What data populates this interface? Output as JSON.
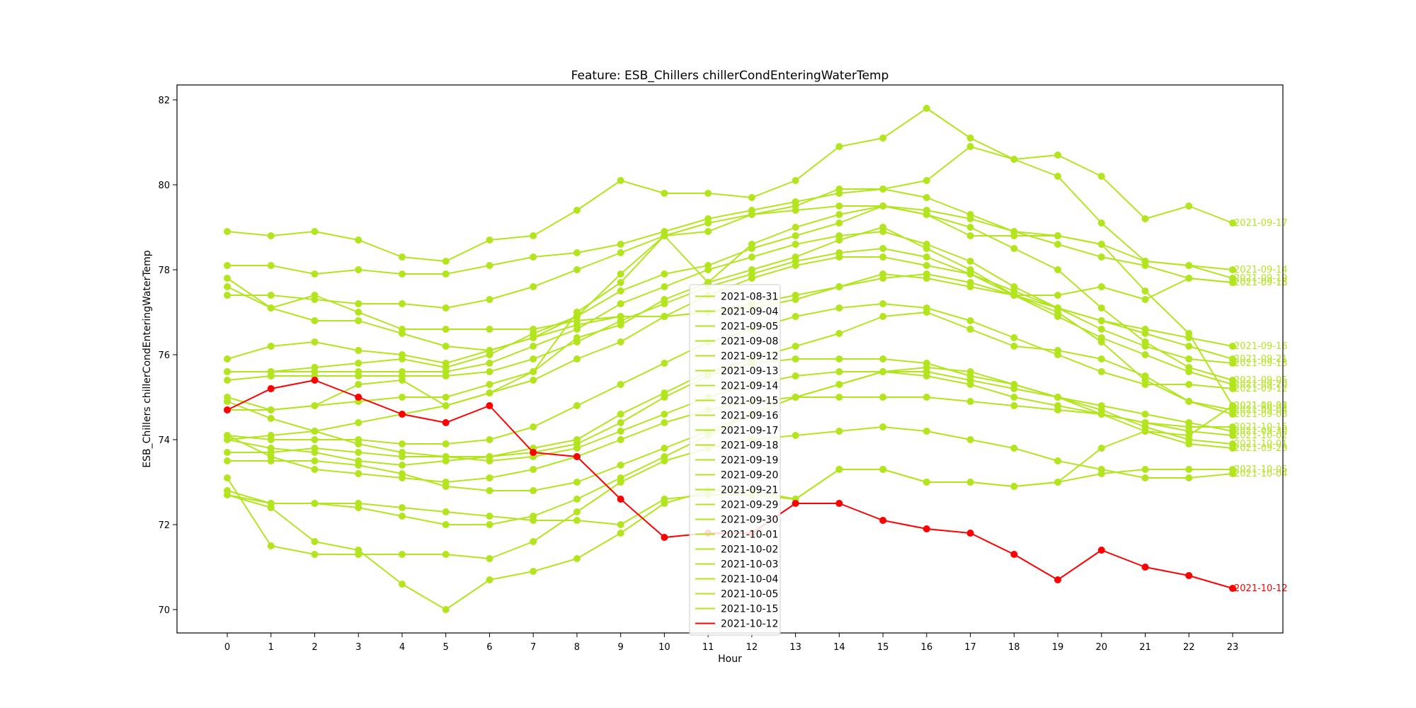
{
  "chart_data": {
    "type": "line",
    "title": "Feature: ESB_Chillers chillerCondEnteringWaterTemp",
    "xlabel": "Hour",
    "ylabel": "ESB_Chillers chillerCondEnteringWaterTemp",
    "x": [
      0,
      1,
      2,
      3,
      4,
      5,
      6,
      7,
      8,
      9,
      10,
      11,
      12,
      13,
      14,
      15,
      16,
      17,
      18,
      19,
      20,
      21,
      22,
      23
    ],
    "xticks": [
      "0",
      "1",
      "2",
      "3",
      "4",
      "5",
      "6",
      "7",
      "8",
      "9",
      "10",
      "11",
      "12",
      "13",
      "14",
      "15",
      "16",
      "17",
      "18",
      "19",
      "20",
      "21",
      "22",
      "23"
    ],
    "yticks": [
      "70",
      "72",
      "74",
      "76",
      "78",
      "80",
      "82"
    ],
    "xlim": [
      -1.15,
      24.15
    ],
    "ylim": [
      69.45,
      82.35
    ],
    "grid": false,
    "legend_placement": "lower center",
    "colors": {
      "normal": "#b3e51e",
      "highlight": "#ff0000"
    },
    "series": [
      {
        "name": "2021-08-31",
        "values": [
          75.0,
          74.7,
          74.8,
          75.3,
          75.4,
          74.8,
          75.1,
          75.6,
          77.0,
          77.7,
          78.8,
          77.7,
          78.6,
          79.0,
          79.3,
          79.5,
          79.3,
          78.8,
          78.8,
          78.8,
          78.6,
          77.5,
          76.5,
          74.8
        ]
      },
      {
        "name": "2021-09-04",
        "values": [
          74.7,
          74.7,
          74.8,
          74.9,
          75.0,
          75.0,
          75.3,
          75.6,
          76.4,
          76.7,
          77.3,
          77.7,
          78.0,
          78.3,
          78.7,
          79.0,
          78.5,
          78.0,
          77.4,
          77.0,
          76.3,
          75.4,
          74.9,
          74.7
        ]
      },
      {
        "name": "2021-09-05",
        "values": [
          75.6,
          75.6,
          75.7,
          75.8,
          75.9,
          75.7,
          76.0,
          76.5,
          76.9,
          77.5,
          77.9,
          78.1,
          78.5,
          78.8,
          79.1,
          79.5,
          79.3,
          79.0,
          78.5,
          78.0,
          77.1,
          76.3,
          75.7,
          75.4
        ]
      },
      {
        "name": "2021-09-08",
        "values": [
          73.7,
          73.7,
          73.8,
          73.7,
          73.6,
          73.6,
          73.6,
          73.8,
          74.0,
          74.6,
          75.1,
          75.6,
          75.9,
          76.2,
          76.5,
          76.9,
          77.0,
          76.6,
          76.2,
          76.1,
          75.9,
          75.5,
          74.9,
          74.6
        ]
      },
      {
        "name": "2021-09-12",
        "values": [
          74.1,
          74.0,
          74.0,
          74.0,
          73.9,
          73.9,
          74.0,
          74.3,
          74.8,
          75.3,
          75.8,
          76.3,
          76.6,
          76.9,
          77.1,
          77.2,
          77.1,
          76.8,
          76.4,
          76.0,
          75.6,
          75.3,
          75.3,
          75.2
        ]
      },
      {
        "name": "2021-09-13",
        "values": [
          75.6,
          75.6,
          75.6,
          75.6,
          75.6,
          75.6,
          75.8,
          76.2,
          76.6,
          77.2,
          77.6,
          78.0,
          78.3,
          78.6,
          78.8,
          78.9,
          78.6,
          78.2,
          77.6,
          77.1,
          76.6,
          76.2,
          75.9,
          75.8
        ]
      },
      {
        "name": "2021-09-14",
        "values": [
          78.1,
          78.1,
          77.9,
          78.0,
          77.9,
          77.9,
          78.1,
          78.3,
          78.4,
          78.6,
          78.9,
          79.2,
          79.4,
          79.6,
          79.8,
          79.9,
          79.7,
          79.3,
          78.9,
          78.8,
          78.6,
          78.2,
          78.1,
          78.0
        ]
      },
      {
        "name": "2021-09-15",
        "values": [
          77.4,
          77.4,
          77.3,
          77.2,
          77.2,
          77.1,
          77.3,
          77.6,
          78.0,
          78.4,
          78.8,
          79.1,
          79.3,
          79.4,
          79.5,
          79.5,
          79.4,
          79.2,
          78.9,
          78.6,
          78.3,
          78.1,
          77.8,
          77.7
        ]
      },
      {
        "name": "2021-09-16",
        "values": [
          75.4,
          75.5,
          75.5,
          75.5,
          75.5,
          75.5,
          75.6,
          75.9,
          76.3,
          76.8,
          77.2,
          77.6,
          77.9,
          78.2,
          78.4,
          78.5,
          78.3,
          77.9,
          77.5,
          77.1,
          76.8,
          76.6,
          76.4,
          76.2
        ]
      },
      {
        "name": "2021-09-17",
        "values": [
          78.9,
          78.8,
          78.9,
          78.7,
          78.3,
          78.2,
          78.7,
          78.8,
          79.4,
          80.1,
          79.8,
          79.8,
          79.7,
          80.1,
          80.9,
          81.1,
          81.8,
          81.1,
          80.6,
          80.7,
          80.2,
          79.2,
          79.5,
          79.1
        ]
      },
      {
        "name": "2021-09-18",
        "values": [
          77.8,
          77.1,
          77.4,
          77.0,
          76.6,
          76.6,
          76.6,
          76.6,
          76.8,
          76.9,
          76.9,
          77.0,
          77.2,
          77.4,
          77.6,
          77.9,
          77.8,
          77.6,
          77.4,
          77.4,
          77.6,
          77.3,
          77.8,
          77.7
        ]
      },
      {
        "name": "2021-09-19",
        "values": [
          77.6,
          77.1,
          76.8,
          76.8,
          76.5,
          76.2,
          76.1,
          76.4,
          76.9,
          77.9,
          78.8,
          78.9,
          79.3,
          79.5,
          79.9,
          79.9,
          80.1,
          80.9,
          80.6,
          80.2,
          79.1,
          78.2,
          78.1,
          77.8
        ]
      },
      {
        "name": "2021-09-20",
        "values": [
          74.9,
          74.5,
          74.2,
          74.4,
          74.6,
          74.8,
          75.1,
          75.4,
          75.9,
          76.3,
          76.9,
          77.4,
          77.8,
          78.1,
          78.3,
          78.3,
          78.1,
          77.9,
          77.4,
          76.9,
          76.4,
          76.0,
          75.6,
          75.3
        ]
      },
      {
        "name": "2021-09-21",
        "values": [
          75.9,
          76.2,
          76.3,
          76.1,
          76.0,
          75.8,
          76.1,
          76.4,
          76.7,
          76.9,
          76.9,
          77.0,
          77.1,
          77.3,
          77.6,
          77.8,
          77.9,
          77.7,
          77.4,
          77.1,
          76.8,
          76.5,
          76.2,
          75.9
        ]
      },
      {
        "name": "2021-09-29",
        "values": [
          74.0,
          73.8,
          73.7,
          73.5,
          73.4,
          73.5,
          73.6,
          73.7,
          73.9,
          74.4,
          75.0,
          75.5,
          75.8,
          75.9,
          75.9,
          75.9,
          75.8,
          75.5,
          75.3,
          75.0,
          74.6,
          74.2,
          73.9,
          73.8
        ]
      },
      {
        "name": "2021-09-30",
        "values": [
          73.5,
          73.5,
          73.5,
          73.4,
          73.2,
          72.9,
          72.8,
          72.8,
          73.0,
          73.4,
          73.8,
          74.2,
          74.6,
          75.0,
          75.3,
          75.6,
          75.6,
          75.4,
          75.2,
          75.0,
          74.8,
          74.6,
          74.4,
          74.2
        ]
      },
      {
        "name": "2021-10-01",
        "values": [
          72.7,
          72.5,
          72.5,
          72.4,
          72.2,
          72.0,
          72.0,
          72.2,
          72.6,
          73.1,
          73.6,
          74.1,
          74.6,
          75.0,
          75.3,
          75.6,
          75.7,
          75.6,
          75.3,
          75.0,
          74.7,
          74.3,
          74.0,
          73.9
        ]
      },
      {
        "name": "2021-10-02",
        "values": [
          74.1,
          73.6,
          73.3,
          73.2,
          73.1,
          73.0,
          73.1,
          73.3,
          73.6,
          74.0,
          74.4,
          74.7,
          74.9,
          75.0,
          75.0,
          75.0,
          75.0,
          74.9,
          74.8,
          74.7,
          74.6,
          74.4,
          74.2,
          74.1
        ]
      },
      {
        "name": "2021-10-03",
        "values": [
          72.8,
          72.5,
          72.5,
          72.5,
          72.4,
          72.3,
          72.2,
          72.1,
          72.1,
          72.0,
          72.6,
          72.7,
          72.7,
          72.6,
          73.3,
          73.3,
          73.0,
          73.0,
          72.9,
          73.0,
          73.8,
          74.2,
          74.1,
          74.8
        ]
      },
      {
        "name": "2021-10-04",
        "values": [
          73.1,
          71.5,
          71.3,
          71.3,
          71.3,
          71.3,
          71.2,
          71.6,
          72.3,
          73.0,
          73.5,
          73.8,
          74.0,
          74.1,
          74.2,
          74.3,
          74.2,
          74.0,
          73.8,
          73.5,
          73.3,
          73.1,
          73.1,
          73.2
        ]
      },
      {
        "name": "2021-10-05",
        "values": [
          72.7,
          72.4,
          71.6,
          71.4,
          70.6,
          70.0,
          70.7,
          70.9,
          71.2,
          71.8,
          72.5,
          72.8,
          72.8,
          72.6,
          73.3,
          73.3,
          73.0,
          73.0,
          72.9,
          73.0,
          73.2,
          73.3,
          73.3,
          73.3
        ]
      },
      {
        "name": "2021-10-15",
        "values": [
          74.0,
          74.1,
          74.2,
          73.9,
          73.7,
          73.6,
          73.5,
          73.6,
          73.8,
          74.2,
          74.6,
          75.0,
          75.3,
          75.5,
          75.6,
          75.6,
          75.5,
          75.3,
          75.0,
          74.8,
          74.6,
          74.4,
          74.3,
          74.3
        ]
      },
      {
        "name": "2021-10-12",
        "values": [
          74.7,
          75.2,
          75.4,
          75.0,
          74.6,
          74.4,
          74.8,
          73.7,
          73.6,
          72.6,
          71.7,
          71.8,
          71.8,
          72.5,
          72.5,
          72.1,
          71.9,
          71.8,
          71.3,
          70.7,
          71.4,
          71.0,
          70.8,
          70.5
        ]
      }
    ],
    "highlight_series": "2021-10-12"
  }
}
